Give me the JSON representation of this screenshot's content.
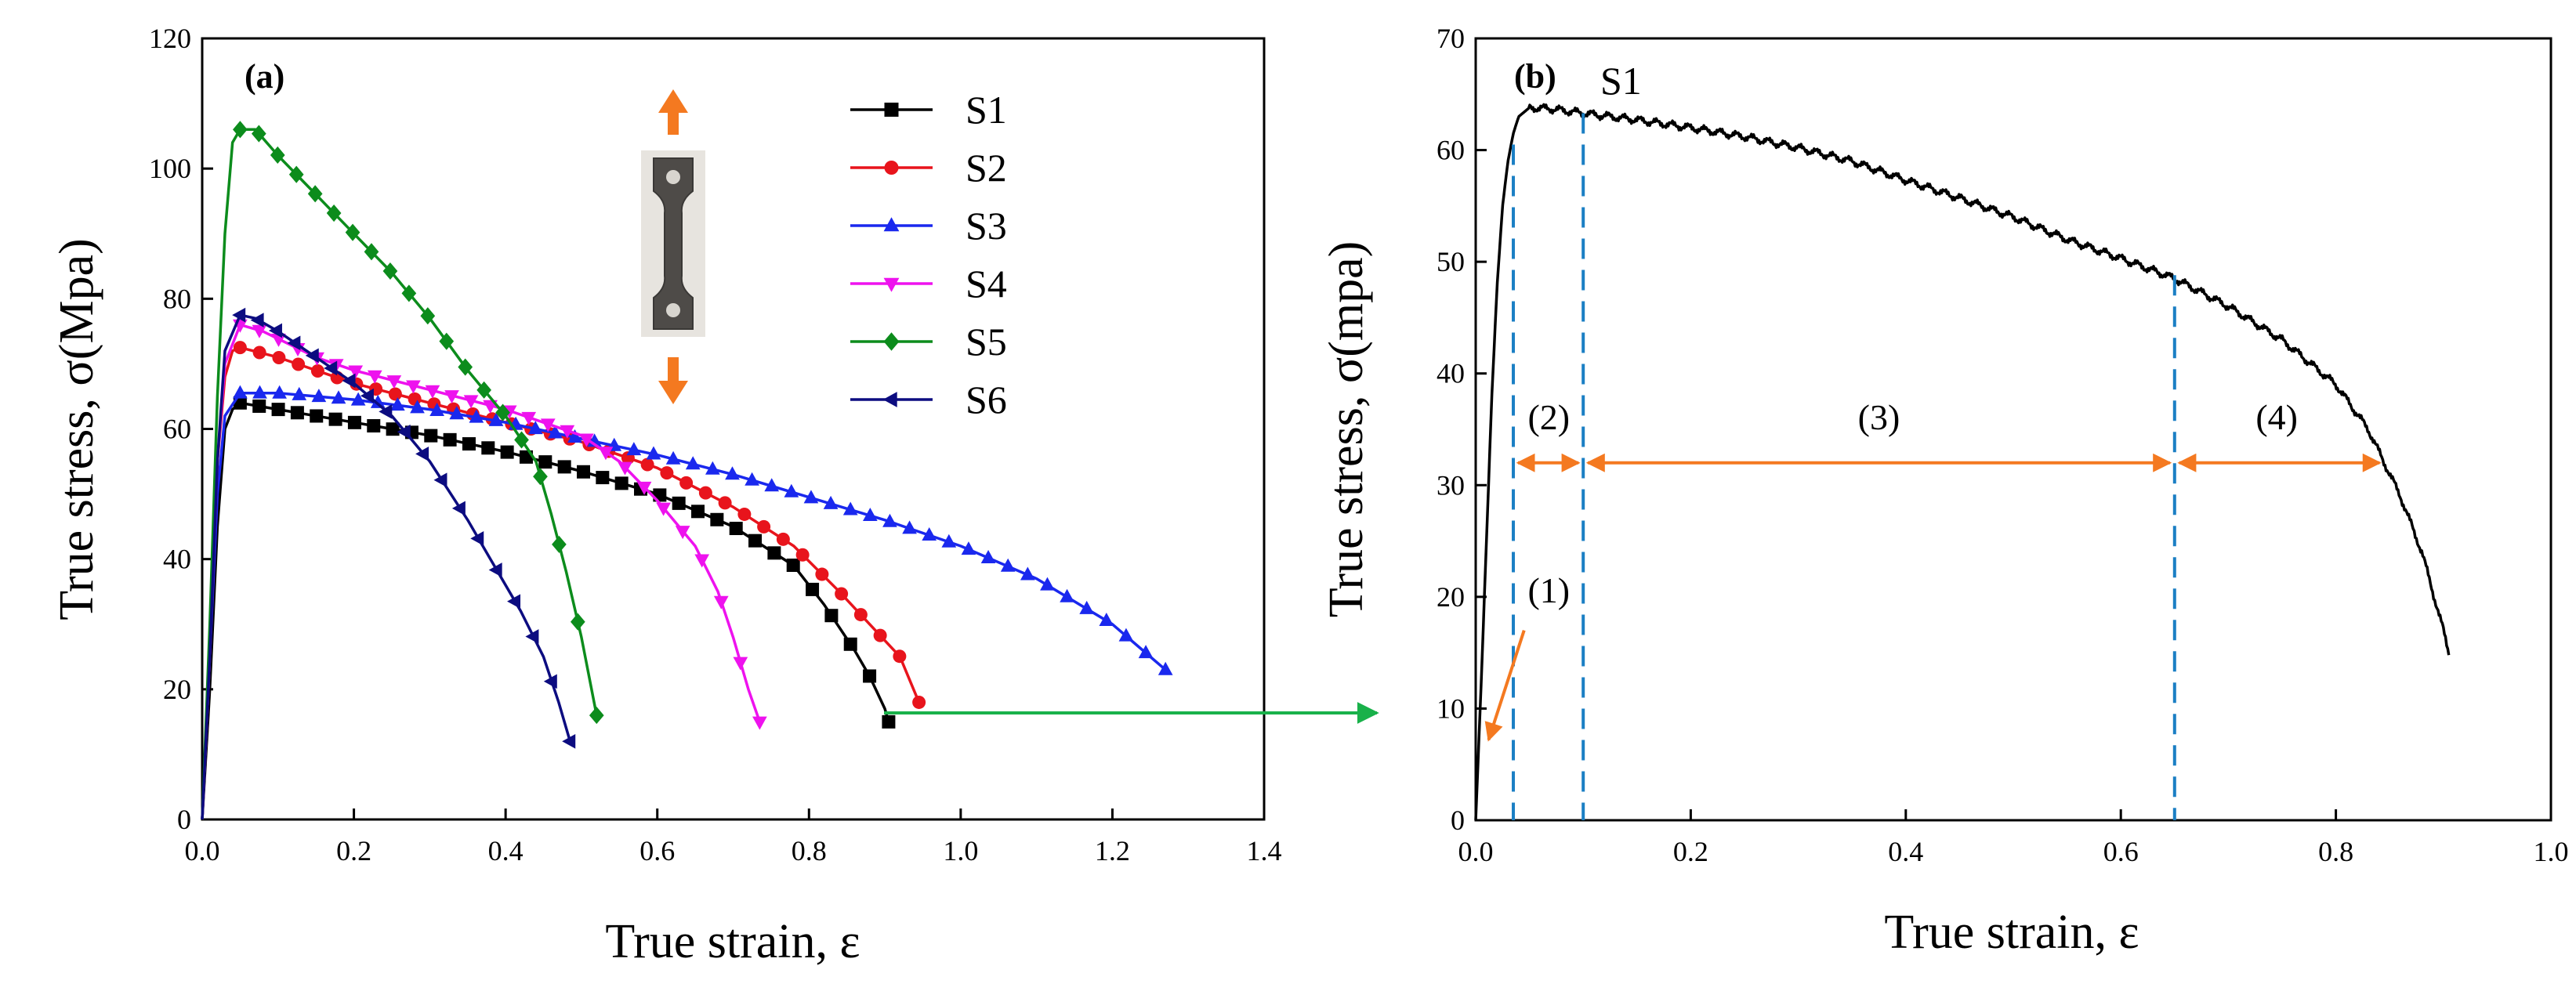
{
  "chart_data": [
    {
      "type": "line",
      "panel_label": "(a)",
      "xlabel": "True strain, ε",
      "ylabel": "True stress, σ(Mpa)",
      "xlim": [
        0.0,
        1.4
      ],
      "ylim": [
        0,
        120
      ],
      "xticks": [
        "0.0",
        "0.2",
        "0.4",
        "0.6",
        "0.8",
        "1.0",
        "1.2",
        "1.4"
      ],
      "yticks": [
        "0",
        "20",
        "40",
        "60",
        "80",
        "100",
        "120"
      ],
      "legend_position": "top-right",
      "inset": "tensile specimen photo with vertical loading arrows",
      "series": [
        {
          "name": "S1",
          "color": "#000000",
          "marker": "square",
          "x": [
            0.0,
            0.01,
            0.02,
            0.03,
            0.04,
            0.05,
            0.1,
            0.2,
            0.3,
            0.4,
            0.5,
            0.6,
            0.7,
            0.78,
            0.82,
            0.86,
            0.88,
            0.9,
            0.905
          ],
          "y": [
            0,
            20,
            45,
            60,
            63,
            64,
            63,
            61,
            59,
            56.5,
            53.5,
            50,
            45,
            39,
            33,
            26,
            22,
            17,
            15
          ]
        },
        {
          "name": "S2",
          "color": "#e8141c",
          "marker": "circle",
          "x": [
            0.0,
            0.01,
            0.02,
            0.03,
            0.04,
            0.05,
            0.1,
            0.2,
            0.3,
            0.4,
            0.5,
            0.6,
            0.7,
            0.78,
            0.84,
            0.88,
            0.92,
            0.945
          ],
          "y": [
            0,
            25,
            55,
            68,
            72,
            72.5,
            71,
            67,
            64,
            61,
            58,
            54,
            48,
            42,
            35,
            30,
            25,
            18
          ]
        },
        {
          "name": "S3",
          "color": "#1a28ee",
          "marker": "triangle-up",
          "x": [
            0.0,
            0.01,
            0.02,
            0.03,
            0.05,
            0.1,
            0.2,
            0.3,
            0.4,
            0.5,
            0.6,
            0.7,
            0.8,
            0.9,
            1.0,
            1.1,
            1.2,
            1.24,
            1.27
          ],
          "y": [
            0,
            25,
            50,
            62,
            65.5,
            65.5,
            64.5,
            63,
            61,
            58.5,
            56,
            53,
            49.5,
            46,
            42,
            37,
            30,
            26,
            23
          ]
        },
        {
          "name": "S4",
          "color": "#ee12ee",
          "marker": "triangle-down",
          "x": [
            0.0,
            0.01,
            0.02,
            0.03,
            0.05,
            0.08,
            0.15,
            0.2,
            0.3,
            0.4,
            0.5,
            0.55,
            0.6,
            0.65,
            0.68,
            0.7,
            0.72,
            0.735
          ],
          "y": [
            0,
            25,
            55,
            70,
            76,
            75,
            71,
            69,
            66,
            63,
            59,
            55,
            49,
            42,
            35,
            28,
            20,
            15
          ]
        },
        {
          "name": "S5",
          "color": "#0c8c1c",
          "marker": "diamond",
          "x": [
            0.0,
            0.01,
            0.02,
            0.03,
            0.04,
            0.05,
            0.07,
            0.1,
            0.15,
            0.2,
            0.25,
            0.3,
            0.35,
            0.4,
            0.44,
            0.46,
            0.48,
            0.5,
            0.51,
            0.52
          ],
          "y": [
            0,
            30,
            65,
            90,
            104,
            106,
            106,
            102,
            96,
            90,
            84,
            77,
            69,
            62,
            55,
            47,
            38,
            28,
            22,
            16
          ]
        },
        {
          "name": "S6",
          "color": "#0c0c80",
          "marker": "triangle-left",
          "x": [
            0.0,
            0.01,
            0.02,
            0.03,
            0.05,
            0.07,
            0.1,
            0.15,
            0.2,
            0.25,
            0.3,
            0.35,
            0.38,
            0.42,
            0.45,
            0.47,
            0.485
          ],
          "y": [
            0,
            25,
            55,
            72,
            77.5,
            77,
            75,
            71,
            67,
            62,
            55,
            46,
            40,
            32,
            25,
            18,
            12
          ]
        }
      ]
    },
    {
      "type": "line",
      "panel_label": "(b)",
      "curve_label": "S1",
      "xlabel": "True strain, ε",
      "ylabel": "True stress, σ(mpa)",
      "xlim": [
        0.0,
        1.0
      ],
      "ylim": [
        0,
        70
      ],
      "xticks": [
        "0.0",
        "0.2",
        "0.4",
        "0.6",
        "0.8",
        "1.0"
      ],
      "yticks": [
        "0",
        "10",
        "20",
        "30",
        "40",
        "50",
        "60",
        "70"
      ],
      "series": [
        {
          "name": "S1",
          "color": "#000000",
          "x": [
            0.0,
            0.005,
            0.01,
            0.015,
            0.02,
            0.025,
            0.03,
            0.035,
            0.04,
            0.05,
            0.07,
            0.1,
            0.15,
            0.2,
            0.25,
            0.3,
            0.35,
            0.4,
            0.45,
            0.5,
            0.55,
            0.6,
            0.65,
            0.7,
            0.75,
            0.8,
            0.83,
            0.86,
            0.88,
            0.9,
            0.905
          ],
          "y": [
            0,
            12,
            25,
            38,
            48,
            55,
            59,
            61.5,
            63,
            63.8,
            63.7,
            63.3,
            62.7,
            62,
            61.2,
            60.2,
            59,
            57.3,
            55.7,
            54,
            52,
            50.3,
            48.5,
            46,
            43,
            39,
            35,
            29,
            24,
            17,
            15
          ]
        }
      ],
      "vertical_dashed_lines_x": [
        0.035,
        0.1,
        0.65
      ],
      "region_labels": [
        "(1)",
        "(2)",
        "(3)",
        "(4)"
      ],
      "region_arrow_y": 32
    }
  ],
  "link_arrow": {
    "color": "#19b14a",
    "from": "S1 end point in (a)",
    "to": "panel (b)"
  },
  "colors": {
    "arrow_orange": "#f47920",
    "dash_blue": "#1b7fc4"
  }
}
